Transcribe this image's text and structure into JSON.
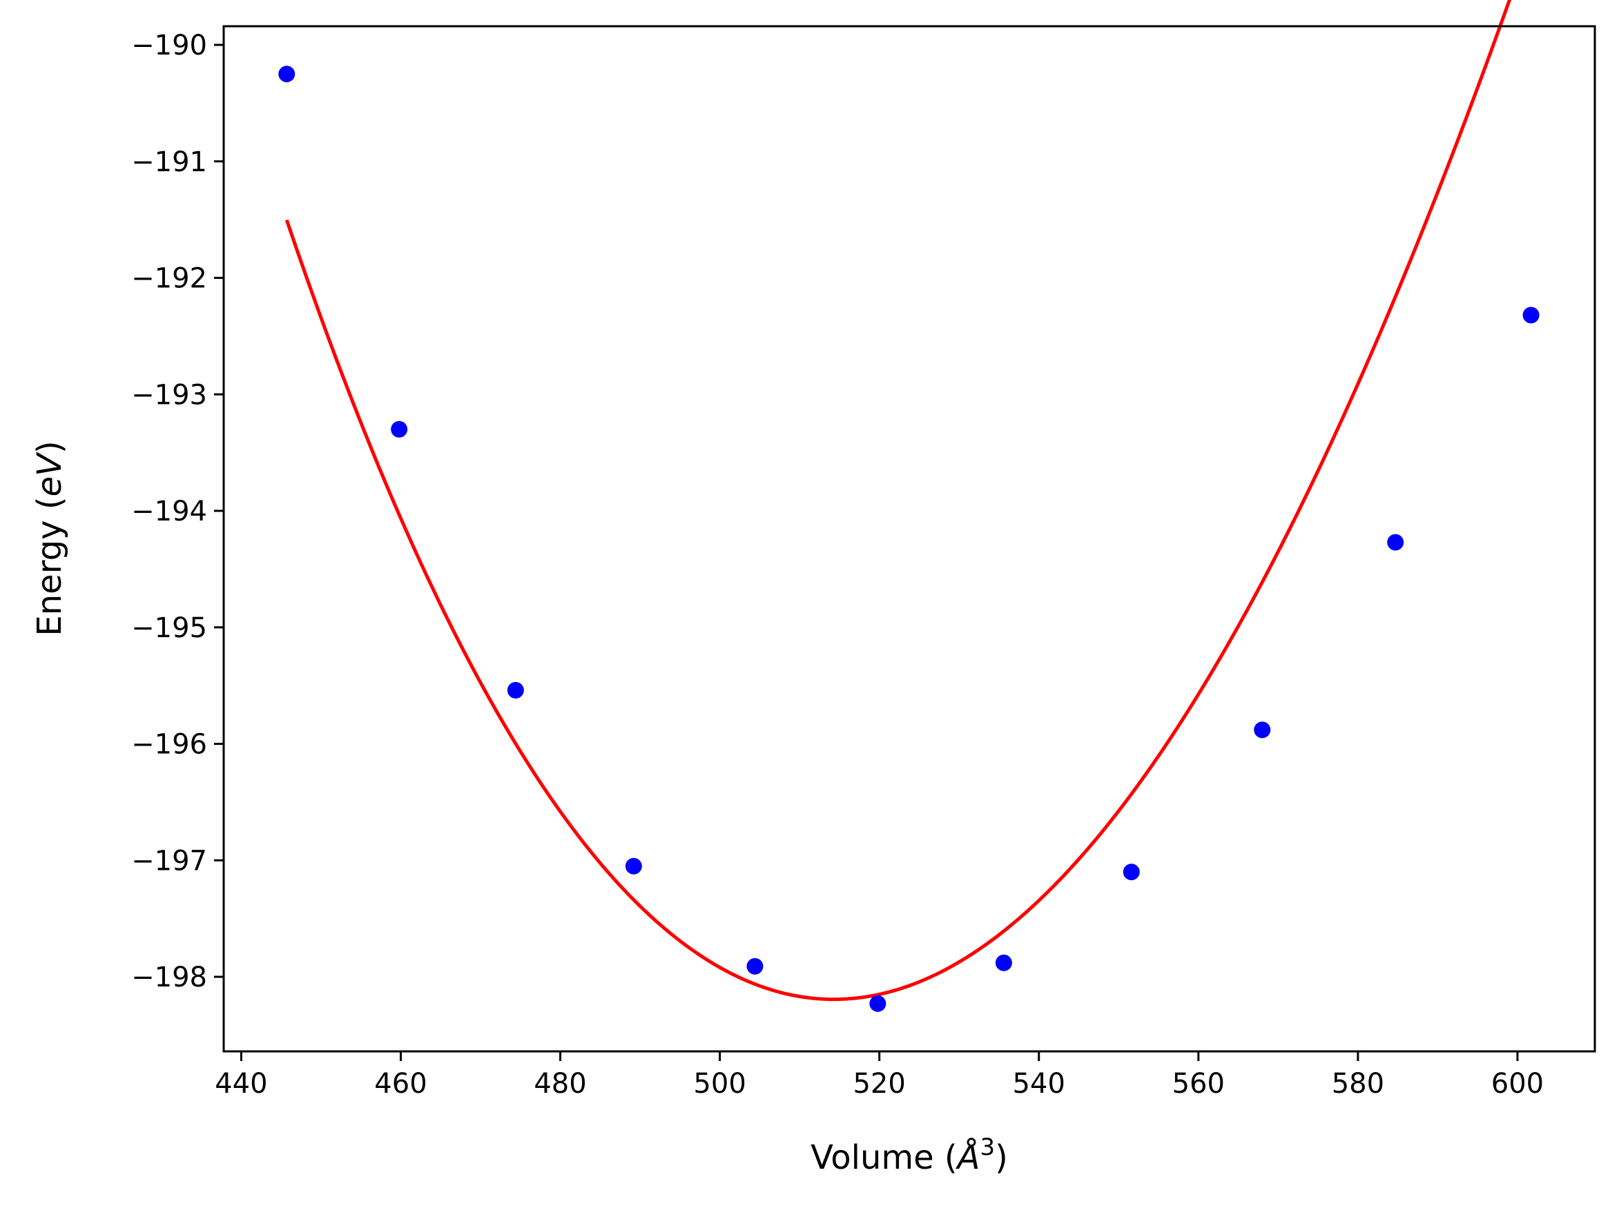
{
  "chart_data": {
    "type": "scatter",
    "xlabel": {
      "prefix": "Volume (",
      "symbol": "Å",
      "sup": "3",
      "suffix": ")"
    },
    "ylabel": {
      "prefix": "Energy (",
      "unit": "eV",
      "suffix": ")"
    },
    "xlim": [
      437.8,
      609.7
    ],
    "ylim": [
      -198.64,
      -189.84
    ],
    "xticks": [
      440,
      460,
      480,
      500,
      520,
      540,
      560,
      580,
      600
    ],
    "yticks": [
      -190,
      -191,
      -192,
      -193,
      -194,
      -195,
      -196,
      -197,
      -198
    ],
    "xtick_labels": [
      "440",
      "460",
      "480",
      "500",
      "520",
      "540",
      "560",
      "580",
      "600"
    ],
    "ytick_labels": [
      "−190",
      "−191",
      "−192",
      "−193",
      "−194",
      "−195",
      "−196",
      "−197",
      "−198"
    ],
    "grid": false,
    "legend": "none",
    "series": [
      {
        "type": "scatter",
        "color": "#0000ff",
        "x": [
          445.7,
          459.8,
          474.4,
          489.2,
          504.4,
          519.8,
          535.6,
          551.6,
          568.0,
          584.7,
          601.7
        ],
        "y": [
          -190.25,
          -193.3,
          -195.54,
          -197.05,
          -197.91,
          -198.23,
          -197.88,
          -197.1,
          -195.88,
          -194.27,
          -192.32
        ]
      },
      {
        "type": "line",
        "color": "#ff0000",
        "fit": {
          "model": "polynomial",
          "coefficients": [
            -198.17,
            0.01105,
            0.001302,
            -1.48e-06
          ],
          "center": 518.5,
          "x_range": [
            445.7,
            601.7
          ]
        }
      }
    ]
  }
}
